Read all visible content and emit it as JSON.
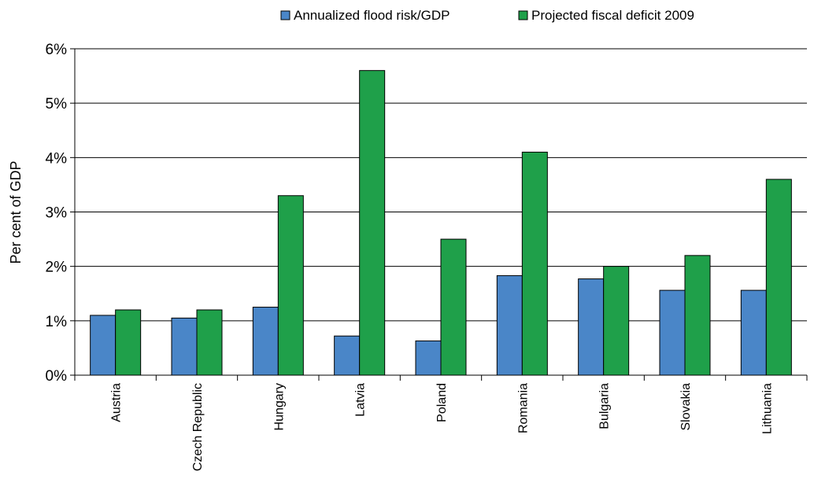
{
  "chart_data": {
    "type": "bar",
    "title": "",
    "xlabel": "",
    "ylabel": "Per cent of GDP",
    "ylim": [
      0,
      6
    ],
    "yticks": [
      "0%",
      "1%",
      "2%",
      "3%",
      "4%",
      "5%",
      "6%"
    ],
    "yticks_values": [
      0,
      1,
      2,
      3,
      4,
      5,
      6
    ],
    "grid": true,
    "legend_position": "top",
    "categories": [
      "Austria",
      "Czech Republic",
      "Hungary",
      "Latvia",
      "Poland",
      "Romania",
      "Bulgaria",
      "Slovakia",
      "Lithuania"
    ],
    "series": [
      {
        "name": "Annualized flood risk/GDP",
        "color": "#4a86c8",
        "values": [
          1.1,
          1.05,
          1.25,
          0.72,
          0.63,
          1.83,
          1.77,
          1.56,
          1.56
        ]
      },
      {
        "name": "Projected fiscal deficit 2009",
        "color": "#1fa04a",
        "values": [
          1.2,
          1.2,
          3.3,
          5.6,
          2.5,
          4.1,
          2.0,
          2.2,
          3.6
        ]
      }
    ]
  }
}
